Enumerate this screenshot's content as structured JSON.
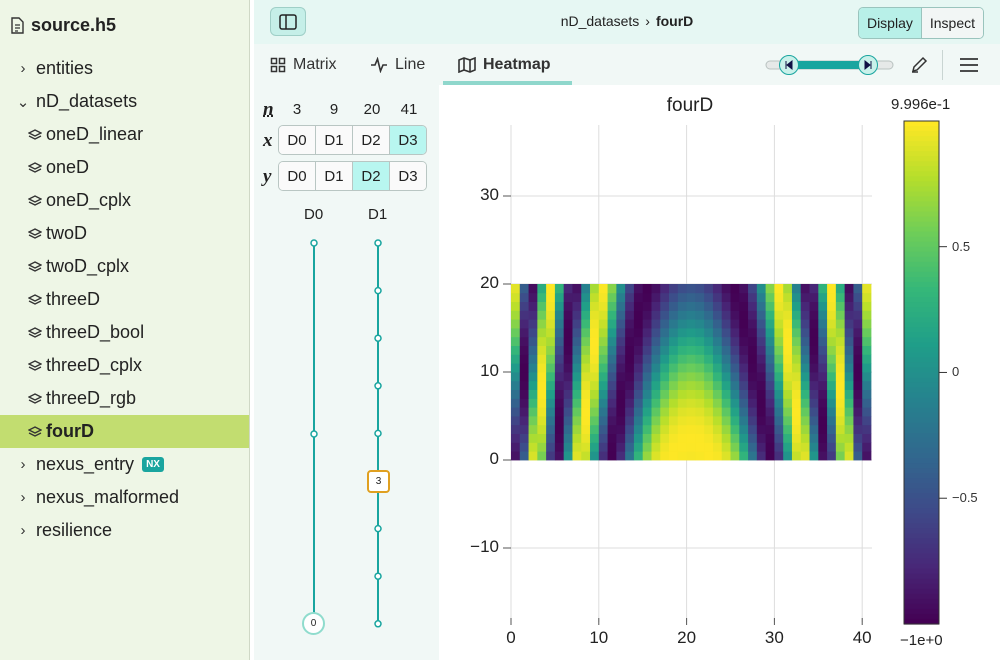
{
  "sidebar": {
    "file_name": "source.h5",
    "items": [
      {
        "label": "entities",
        "kind": "group",
        "expanded": false
      },
      {
        "label": "nD_datasets",
        "kind": "group",
        "expanded": true
      },
      {
        "label": "oneD_linear",
        "kind": "dataset"
      },
      {
        "label": "oneD",
        "kind": "dataset"
      },
      {
        "label": "oneD_cplx",
        "kind": "dataset"
      },
      {
        "label": "twoD",
        "kind": "dataset"
      },
      {
        "label": "twoD_cplx",
        "kind": "dataset"
      },
      {
        "label": "threeD",
        "kind": "dataset"
      },
      {
        "label": "threeD_bool",
        "kind": "dataset"
      },
      {
        "label": "threeD_cplx",
        "kind": "dataset"
      },
      {
        "label": "threeD_rgb",
        "kind": "dataset"
      },
      {
        "label": "fourD",
        "kind": "dataset",
        "selected": true
      },
      {
        "label": "nexus_entry",
        "kind": "group",
        "expanded": false,
        "badge": "NX"
      },
      {
        "label": "nexus_malformed",
        "kind": "group",
        "expanded": false
      },
      {
        "label": "resilience",
        "kind": "group",
        "expanded": false
      }
    ]
  },
  "toolbar": {
    "breadcrumb_parent": "nD_datasets",
    "breadcrumb_separator": "›",
    "breadcrumb_current": "fourD",
    "display_label": "Display",
    "inspect_label": "Inspect"
  },
  "tabs": [
    {
      "label": "Matrix",
      "icon": "grid-icon"
    },
    {
      "label": "Line",
      "icon": "activity-icon"
    },
    {
      "label": "Heatmap",
      "icon": "map-icon",
      "active": true
    }
  ],
  "mapper": {
    "n_label": "n",
    "x_label": "x",
    "y_label": "y",
    "sizes": [
      "3",
      "9",
      "20",
      "41"
    ],
    "dims": [
      "D0",
      "D1",
      "D2",
      "D3"
    ],
    "x_selected": "D3",
    "y_selected": "D2",
    "slider_dims": [
      "D0",
      "D1"
    ],
    "d0_value": "0",
    "d1_value": "3"
  },
  "plot": {
    "title": "fourD",
    "colorbar_max": "9.996e-1",
    "colorbar_min": "−1e+0",
    "colorbar_ticks": [
      "0.5",
      "0",
      "−0.5"
    ],
    "y_ticks": [
      "30",
      "20",
      "10",
      "0",
      "−10"
    ],
    "x_ticks": [
      "0",
      "10",
      "20",
      "30",
      "40"
    ],
    "colormap": "viridis",
    "colors": {
      "accent": "#19a59f",
      "selected_row": "#c2dd70"
    }
  },
  "chart_data": {
    "type": "heatmap",
    "title": "fourD",
    "x_range": [
      0,
      41
    ],
    "y_range": [
      0,
      20
    ],
    "xlim": [
      -1,
      41
    ],
    "ylim": [
      -19,
      39
    ],
    "value_range": [
      -1,
      0.9996
    ],
    "formula": "cos(0.09*(x-20)^2 + 0.6*y) approx",
    "colormap": "viridis",
    "grid": true
  }
}
